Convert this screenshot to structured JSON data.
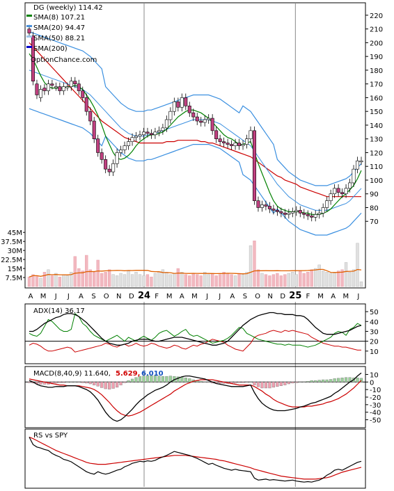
{
  "chart_data": [
    {
      "panel": "price",
      "type": "candlestick",
      "title": "DG (weekly) 114.42",
      "source": "OptionChance.com",
      "legend": [
        {
          "label": "SMA(8) 107.21",
          "color": "#008000"
        },
        {
          "label": "SMA(20) 94.47",
          "color": "#4a90d9"
        },
        {
          "label": "SMA(50) 88.21",
          "color": "#cc0000"
        },
        {
          "label": "SMA(200)",
          "color": "#0000cc"
        }
      ],
      "ylim": [
        60,
        225
      ],
      "yticks": [
        70,
        80,
        90,
        100,
        110,
        120,
        130,
        140,
        150,
        160,
        170,
        180,
        190,
        200,
        210,
        220
      ],
      "xticks": [
        "A",
        "M",
        "J",
        "J",
        "A",
        "S",
        "O",
        "N",
        "D",
        "24",
        "F",
        "M",
        "A",
        "M",
        "J",
        "J",
        "A",
        "S",
        "O",
        "N",
        "D",
        "25",
        "F",
        "M",
        "A",
        "M",
        "J"
      ],
      "close": [
        207,
        172,
        162,
        166,
        165,
        170,
        169,
        168,
        165,
        168,
        168,
        172,
        170,
        165,
        160,
        150,
        143,
        130,
        120,
        115,
        108,
        106,
        112,
        120,
        122,
        125,
        128,
        131,
        132,
        133,
        135,
        134,
        133,
        135,
        136,
        138,
        144,
        150,
        157,
        153,
        160,
        154,
        149,
        146,
        143,
        142,
        144,
        145,
        136,
        130,
        128,
        127,
        126,
        125,
        127,
        125,
        126,
        130,
        136,
        85,
        80,
        82,
        81,
        79,
        78,
        77,
        76,
        75,
        76,
        77,
        78,
        76,
        75,
        74,
        73,
        75,
        76,
        80,
        85,
        90,
        94,
        91,
        90,
        94,
        98,
        108,
        114,
        114
      ],
      "open": [
        210,
        205,
        170,
        160,
        167,
        165,
        170,
        168,
        168,
        165,
        168,
        168,
        172,
        170,
        165,
        160,
        150,
        143,
        130,
        120,
        115,
        108,
        106,
        112,
        120,
        122,
        125,
        128,
        131,
        132,
        133,
        135,
        134,
        133,
        135,
        136,
        138,
        144,
        150,
        157,
        153,
        160,
        154,
        149,
        146,
        143,
        142,
        144,
        145,
        136,
        130,
        128,
        127,
        126,
        125,
        127,
        125,
        126,
        130,
        136,
        85,
        80,
        82,
        81,
        79,
        78,
        77,
        76,
        75,
        76,
        77,
        78,
        76,
        75,
        74,
        73,
        75,
        76,
        80,
        85,
        90,
        94,
        91,
        90,
        94,
        98,
        108,
        114
      ],
      "sma8": [
        192,
        188,
        182,
        176,
        171,
        168,
        167,
        167,
        167,
        167,
        168,
        168,
        169,
        168,
        166,
        162,
        158,
        153,
        147,
        140,
        132,
        126,
        120,
        116,
        115,
        116,
        118,
        121,
        125,
        128,
        130,
        132,
        133,
        133,
        134,
        135,
        137,
        140,
        143,
        146,
        148,
        150,
        151,
        151,
        150,
        149,
        147,
        145,
        142,
        139,
        136,
        133,
        131,
        130,
        128,
        126,
        126,
        127,
        128,
        120,
        112,
        105,
        98,
        91,
        85,
        81,
        79,
        78,
        77,
        77,
        77,
        77,
        76,
        76,
        75,
        75,
        75,
        76,
        77,
        79,
        82,
        85,
        88,
        90,
        93,
        96,
        101,
        107
      ],
      "sma20": [
        180,
        179,
        178,
        177,
        176,
        175,
        174,
        173,
        172,
        171,
        170,
        169,
        168,
        167,
        166,
        164,
        162,
        159,
        156,
        153,
        150,
        147,
        144,
        141,
        138,
        136,
        134,
        133,
        132,
        132,
        132,
        133,
        133,
        134,
        135,
        136,
        137,
        138,
        139,
        140,
        141,
        142,
        143,
        144,
        144,
        144,
        144,
        144,
        143,
        142,
        141,
        139,
        137,
        135,
        133,
        131,
        129,
        127,
        125,
        121,
        117,
        113,
        109,
        105,
        101,
        97,
        94,
        91,
        88,
        86,
        84,
        82,
        81,
        80,
        79,
        78,
        78,
        78,
        78,
        79,
        80,
        81,
        82,
        83,
        85,
        88,
        91,
        94
      ],
      "sma50": [
        200,
        197,
        194,
        191,
        188,
        185,
        182,
        179,
        176,
        173,
        170,
        167,
        164,
        161,
        158,
        155,
        152,
        149,
        146,
        143,
        141,
        139,
        137,
        135,
        133,
        131,
        130,
        129,
        128,
        127,
        127,
        127,
        127,
        127,
        127,
        127,
        128,
        128,
        128,
        129,
        129,
        129,
        129,
        129,
        129,
        128,
        128,
        127,
        127,
        126,
        125,
        124,
        123,
        122,
        121,
        120,
        119,
        118,
        117,
        115,
        113,
        111,
        109,
        107,
        105,
        103,
        102,
        100,
        99,
        98,
        97,
        95,
        94,
        93,
        92,
        91,
        90,
        89,
        88,
        88,
        88,
        88,
        88,
        88,
        88,
        88,
        88,
        88
      ]
    },
    {
      "panel": "volume",
      "type": "bar",
      "yticks": [
        "45M",
        "37.5M",
        "30M",
        "22.5M",
        "15M",
        "7.5M"
      ],
      "ylim": [
        0,
        48
      ],
      "values": [
        8,
        10,
        9,
        7,
        12,
        14,
        9,
        11,
        8,
        10,
        9,
        12,
        25,
        15,
        13,
        26,
        14,
        12,
        22,
        11,
        12,
        14,
        10,
        9,
        11,
        10,
        13,
        10,
        12,
        10,
        9,
        10,
        8,
        11,
        12,
        14,
        12,
        10,
        11,
        15,
        12,
        10,
        9,
        11,
        10,
        9,
        12,
        10,
        11,
        9,
        10,
        12,
        11,
        10,
        9,
        11,
        10,
        12,
        34,
        38,
        14,
        11,
        10,
        9,
        10,
        11,
        9,
        10,
        11,
        12,
        10,
        13,
        11,
        12,
        14,
        15,
        18,
        13,
        12,
        11,
        12,
        13,
        14,
        20,
        12,
        14,
        36,
        4
      ],
      "avg_color": "#e06000"
    },
    {
      "panel": "adx",
      "type": "line",
      "label": "ADX(14) 36.17",
      "ylim": [
        0,
        55
      ],
      "yticks": [
        50,
        40,
        30,
        20,
        10
      ],
      "hline": 20,
      "adx": [
        30,
        30,
        32,
        35,
        38,
        40,
        42,
        44,
        45,
        47,
        48,
        48,
        47,
        45,
        42,
        39,
        35,
        31,
        27,
        23,
        20,
        18,
        17,
        16,
        16,
        17,
        18,
        20,
        21,
        22,
        22,
        22,
        21,
        20,
        20,
        21,
        22,
        23,
        24,
        24,
        24,
        23,
        22,
        21,
        20,
        19,
        18,
        17,
        16,
        16,
        17,
        18,
        20,
        24,
        28,
        32,
        36,
        39,
        42,
        44,
        46,
        47,
        48,
        49,
        49,
        48,
        48,
        47,
        47,
        47,
        46,
        46,
        45,
        42,
        38,
        34,
        31,
        28,
        27,
        27,
        27,
        28,
        29,
        30,
        31,
        33,
        35,
        36
      ],
      "pdi": [
        28,
        26,
        25,
        28,
        35,
        42,
        40,
        36,
        32,
        30,
        30,
        32,
        48,
        45,
        38,
        35,
        30,
        26,
        24,
        22,
        20,
        22,
        24,
        26,
        23,
        20,
        24,
        22,
        20,
        23,
        25,
        23,
        21,
        24,
        28,
        30,
        31,
        28,
        25,
        27,
        30,
        32,
        27,
        25,
        26,
        24,
        22,
        20,
        18,
        19,
        20,
        21,
        23,
        26,
        30,
        34,
        33,
        28,
        26,
        24,
        22,
        21,
        20,
        19,
        18,
        17,
        17,
        16,
        17,
        16,
        16,
        16,
        15,
        14,
        15,
        16,
        18,
        20,
        22,
        24,
        28,
        30,
        29,
        26,
        32,
        34,
        38,
        36
      ],
      "mdi": [
        16,
        18,
        17,
        15,
        12,
        10,
        10,
        11,
        12,
        13,
        14,
        13,
        9,
        10,
        11,
        12,
        13,
        14,
        15,
        16,
        18,
        17,
        15,
        14,
        16,
        17,
        15,
        16,
        18,
        16,
        15,
        16,
        18,
        17,
        15,
        14,
        13,
        14,
        16,
        15,
        13,
        12,
        14,
        16,
        15,
        17,
        18,
        20,
        22,
        21,
        20,
        19,
        16,
        14,
        12,
        11,
        10,
        14,
        18,
        24,
        26,
        27,
        28,
        30,
        31,
        30,
        29,
        31,
        30,
        31,
        30,
        29,
        28,
        27,
        24,
        22,
        20,
        18,
        17,
        16,
        15,
        15,
        14,
        14,
        13,
        12,
        11,
        11
      ]
    },
    {
      "panel": "macd",
      "type": "line",
      "label": "MACD(8,40,9) 11.640,",
      "label_red": "5.629,",
      "label_blue": "6.010",
      "ylim": [
        -55,
        15
      ],
      "yticks": [
        10,
        0,
        -10,
        -20,
        -30,
        -40,
        -50
      ],
      "macd": [
        2,
        0,
        -3,
        -5,
        -6,
        -7,
        -7,
        -6,
        -6,
        -6,
        -5,
        -5,
        -5,
        -6,
        -8,
        -10,
        -13,
        -18,
        -24,
        -32,
        -40,
        -46,
        -50,
        -52,
        -50,
        -46,
        -41,
        -36,
        -30,
        -25,
        -21,
        -17,
        -14,
        -11,
        -9,
        -7,
        -4,
        0,
        3,
        5,
        7,
        8,
        8,
        7,
        6,
        5,
        4,
        2,
        0,
        -2,
        -3,
        -4,
        -5,
        -6,
        -6,
        -6,
        -6,
        -5,
        -4,
        -14,
        -22,
        -28,
        -32,
        -35,
        -37,
        -38,
        -38,
        -38,
        -37,
        -36,
        -35,
        -33,
        -32,
        -30,
        -28,
        -27,
        -25,
        -23,
        -21,
        -19,
        -15,
        -12,
        -8,
        -4,
        0,
        3,
        8,
        12
      ],
      "signal": [
        4,
        3,
        2,
        1,
        0,
        -1,
        -2,
        -3,
        -4,
        -4,
        -5,
        -5,
        -5,
        -5,
        -6,
        -7,
        -8,
        -10,
        -13,
        -17,
        -22,
        -27,
        -33,
        -38,
        -42,
        -44,
        -45,
        -44,
        -42,
        -40,
        -37,
        -34,
        -31,
        -28,
        -25,
        -22,
        -19,
        -16,
        -12,
        -9,
        -6,
        -3,
        -1,
        1,
        2,
        3,
        3,
        3,
        3,
        2,
        1,
        0,
        -1,
        -2,
        -3,
        -4,
        -4,
        -4,
        -4,
        -6,
        -9,
        -12,
        -16,
        -19,
        -23,
        -26,
        -28,
        -30,
        -32,
        -33,
        -33,
        -33,
        -33,
        -32,
        -32,
        -31,
        -30,
        -29,
        -27,
        -26,
        -24,
        -22,
        -19,
        -16,
        -12,
        -8,
        -3,
        2
      ]
    },
    {
      "panel": "rs",
      "type": "line",
      "label": "RS vs SPY",
      "ylim": [
        0,
        100
      ],
      "rs": [
        95,
        80,
        75,
        73,
        70,
        68,
        62,
        58,
        55,
        50,
        48,
        45,
        40,
        35,
        30,
        25,
        22,
        20,
        25,
        22,
        20,
        22,
        25,
        28,
        30,
        35,
        38,
        42,
        44,
        46,
        45,
        47,
        46,
        48,
        52,
        55,
        58,
        62,
        66,
        64,
        62,
        60,
        58,
        55,
        52,
        48,
        44,
        40,
        42,
        38,
        35,
        32,
        30,
        28,
        30,
        28,
        27,
        26,
        25,
        12,
        8,
        9,
        10,
        8,
        9,
        8,
        7,
        6,
        7,
        8,
        6,
        5,
        4,
        5,
        4,
        6,
        8,
        12,
        18,
        22,
        28,
        30,
        28,
        32,
        36,
        40,
        44,
        46
      ],
      "rs_ma": [
        95,
        92,
        88,
        84,
        80,
        76,
        72,
        68,
        65,
        62,
        59,
        56,
        53,
        50,
        47,
        44,
        42,
        41,
        40,
        40,
        40,
        41,
        42,
        43,
        44,
        45,
        46,
        47,
        48,
        49,
        50,
        51,
        52,
        53,
        54,
        55,
        56,
        57,
        58,
        58,
        58,
        58,
        57,
        56,
        55,
        54,
        53,
        52,
        51,
        50,
        48,
        47,
        45,
        43,
        41,
        39,
        37,
        35,
        33,
        30,
        28,
        26,
        24,
        22,
        20,
        18,
        16,
        15,
        14,
        13,
        12,
        11,
        10,
        10,
        10,
        10,
        11,
        12,
        13,
        15,
        18,
        21,
        24,
        26,
        28,
        30,
        32,
        34
      ]
    }
  ]
}
